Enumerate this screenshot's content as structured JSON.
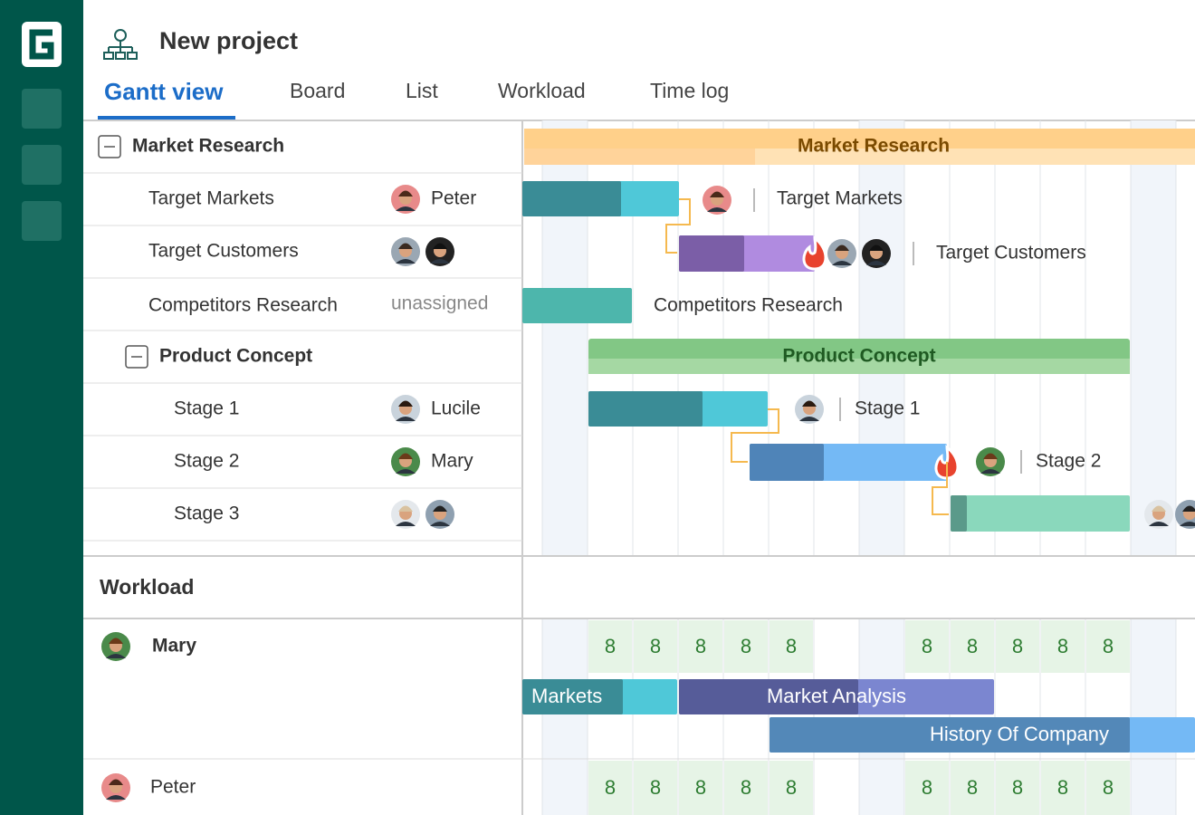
{
  "header": {
    "project_title": "New project",
    "tabs": [
      "Gantt view",
      "Board",
      "List",
      "Workload",
      "Time log"
    ]
  },
  "tasks": [
    {
      "name": "Market Research"
    },
    {
      "name": "Target Markets",
      "assignee": "Peter"
    },
    {
      "name": "Target Customers"
    },
    {
      "name": "Competitors Research",
      "assignee": "unassigned"
    },
    {
      "name": "Product Concept"
    },
    {
      "name": "Stage 1",
      "assignee": "Lucile"
    },
    {
      "name": "Stage 2",
      "assignee": "Mary"
    },
    {
      "name": "Stage 3"
    }
  ],
  "workload": {
    "title": "Workload",
    "people": [
      {
        "name": "Mary",
        "hours": [
          8,
          8,
          8,
          8,
          8,
          8,
          8,
          8,
          8,
          8
        ],
        "bars": [
          "Markets",
          "Market Analysis",
          "History Of Company"
        ]
      },
      {
        "name": "Peter",
        "hours": [
          8,
          8,
          8,
          8,
          8,
          8,
          8,
          8,
          8,
          8
        ]
      }
    ]
  }
}
